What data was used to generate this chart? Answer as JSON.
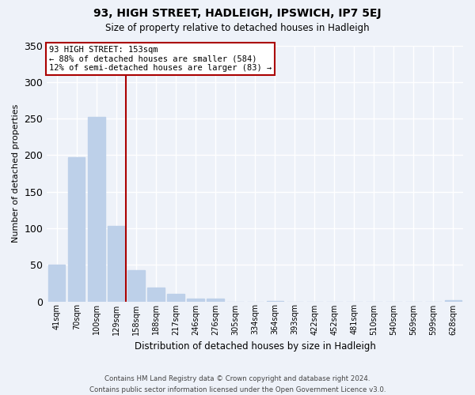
{
  "title": "93, HIGH STREET, HADLEIGH, IPSWICH, IP7 5EJ",
  "subtitle": "Size of property relative to detached houses in Hadleigh",
  "xlabel": "Distribution of detached houses by size in Hadleigh",
  "ylabel": "Number of detached properties",
  "bin_labels": [
    "41sqm",
    "70sqm",
    "100sqm",
    "129sqm",
    "158sqm",
    "188sqm",
    "217sqm",
    "246sqm",
    "276sqm",
    "305sqm",
    "334sqm",
    "364sqm",
    "393sqm",
    "422sqm",
    "452sqm",
    "481sqm",
    "510sqm",
    "540sqm",
    "569sqm",
    "599sqm",
    "628sqm"
  ],
  "bar_heights": [
    50,
    197,
    252,
    103,
    43,
    19,
    10,
    4,
    4,
    0,
    0,
    1,
    0,
    0,
    0,
    0,
    0,
    0,
    0,
    0,
    2
  ],
  "bar_color": "#bdd0e9",
  "vline_x_index": 3.5,
  "vline_color": "#aa0000",
  "annotation_line1": "93 HIGH STREET: 153sqm",
  "annotation_line2": "← 88% of detached houses are smaller (584)",
  "annotation_line3": "12% of semi-detached houses are larger (83) →",
  "annotation_box_color": "#ffffff",
  "annotation_box_edge": "#aa0000",
  "ylim": [
    0,
    350
  ],
  "yticks": [
    0,
    50,
    100,
    150,
    200,
    250,
    300,
    350
  ],
  "footer_line1": "Contains HM Land Registry data © Crown copyright and database right 2024.",
  "footer_line2": "Contains public sector information licensed under the Open Government Licence v3.0.",
  "background_color": "#eef2f9",
  "grid_color": "#ffffff"
}
